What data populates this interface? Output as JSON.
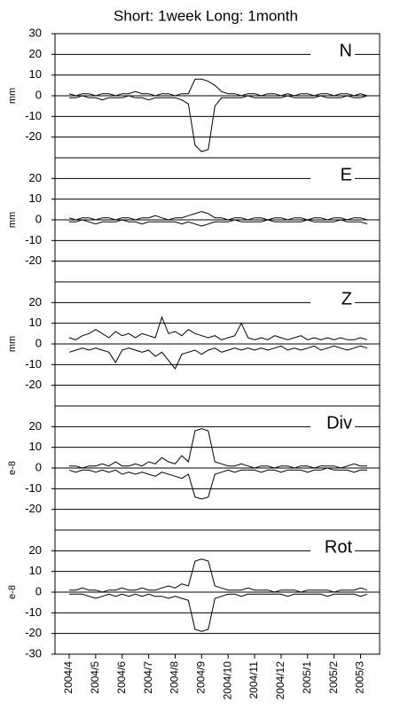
{
  "chart_data": {
    "type": "line",
    "title": "Short: 1week  Long: 1month",
    "categories": [
      "2004/4",
      null,
      null,
      null,
      "2004/5",
      null,
      null,
      null,
      "2004/6",
      null,
      null,
      null,
      "2004/7",
      null,
      null,
      null,
      "2004/8",
      null,
      null,
      null,
      "2004/9",
      null,
      null,
      null,
      "2004/10",
      null,
      null,
      null,
      "2004/11",
      null,
      null,
      null,
      "2004/12",
      null,
      null,
      null,
      "2005/1",
      null,
      null,
      null,
      "2005/2",
      null,
      null,
      null,
      "2005/3",
      null
    ],
    "grid": true,
    "panels": [
      {
        "label": "N",
        "ylabel": "mm",
        "ylim": [
          -30,
          30
        ],
        "yticks": [
          -20,
          -10,
          0,
          10,
          20,
          30
        ],
        "series": [
          {
            "color": "#000000",
            "values": [
              1,
              0,
              1,
              1,
              0,
              1,
              1,
              0,
              1,
              1,
              2,
              1,
              1,
              0,
              1,
              1,
              0,
              1,
              1,
              8,
              8,
              7,
              5,
              2,
              1,
              1,
              0,
              1,
              1,
              0,
              1,
              1,
              0,
              1,
              0,
              1,
              1,
              0,
              1,
              1,
              0,
              1,
              1,
              0,
              1,
              0
            ]
          },
          {
            "color": "#000000",
            "values": [
              -1,
              -1,
              0,
              -1,
              -1,
              -2,
              -1,
              -1,
              -1,
              0,
              -1,
              -1,
              -2,
              -1,
              -1,
              -1,
              -1,
              -2,
              -4,
              -24,
              -27,
              -26,
              -5,
              -1,
              -1,
              -1,
              -1,
              0,
              -1,
              -1,
              -1,
              -1,
              -1,
              0,
              -1,
              -1,
              -1,
              -1,
              0,
              -1,
              -1,
              -1,
              0,
              -1,
              -1,
              0
            ]
          }
        ]
      },
      {
        "label": "E",
        "ylabel": "mm",
        "ylim": [
          -30,
          30
        ],
        "yticks": [
          -20,
          -10,
          0,
          10,
          20
        ],
        "series": [
          {
            "color": "#000000",
            "values": [
              1,
              0,
              1,
              1,
              0,
              1,
              1,
              0,
              1,
              1,
              0,
              1,
              1,
              2,
              1,
              0,
              1,
              1,
              2,
              3,
              4,
              3,
              1,
              1,
              0,
              1,
              1,
              0,
              1,
              1,
              0,
              1,
              1,
              0,
              1,
              1,
              0,
              1,
              1,
              0,
              1,
              1,
              0,
              1,
              1,
              0
            ]
          },
          {
            "color": "#000000",
            "values": [
              -1,
              -1,
              0,
              -1,
              -2,
              -1,
              -1,
              -1,
              0,
              -1,
              -1,
              -2,
              -1,
              -1,
              -1,
              -1,
              -1,
              -2,
              -1,
              -2,
              -3,
              -2,
              -1,
              -1,
              -1,
              0,
              -1,
              -1,
              -1,
              -1,
              0,
              -1,
              -1,
              -1,
              -1,
              -1,
              0,
              -1,
              -1,
              -1,
              -1,
              0,
              -1,
              -1,
              -1,
              -2
            ]
          }
        ]
      },
      {
        "label": "Z",
        "ylabel": "mm",
        "ylim": [
          -30,
          30
        ],
        "yticks": [
          -20,
          -10,
          0,
          10,
          20
        ],
        "series": [
          {
            "color": "#000000",
            "values": [
              3,
              2,
              4,
              5,
              7,
              5,
              3,
              6,
              4,
              5,
              3,
              5,
              4,
              3,
              13,
              5,
              6,
              4,
              7,
              5,
              4,
              3,
              4,
              2,
              3,
              4,
              10,
              3,
              2,
              3,
              2,
              4,
              3,
              2,
              3,
              4,
              2,
              3,
              2,
              3,
              2,
              3,
              2,
              2,
              3,
              2
            ]
          },
          {
            "color": "#000000",
            "values": [
              -4,
              -3,
              -2,
              -3,
              -2,
              -3,
              -4,
              -9,
              -3,
              -2,
              -3,
              -4,
              -3,
              -6,
              -4,
              -8,
              -12,
              -5,
              -4,
              -3,
              -5,
              -3,
              -2,
              -4,
              -3,
              -2,
              -3,
              -2,
              -3,
              -2,
              -3,
              -2,
              -1,
              -3,
              -2,
              -3,
              -2,
              -1,
              -3,
              -2,
              -1,
              -2,
              -3,
              -2,
              -1,
              -2
            ]
          }
        ]
      },
      {
        "label": "Div",
        "ylabel": "e-8",
        "ylim": [
          -30,
          30
        ],
        "yticks": [
          -20,
          -10,
          0,
          10,
          20
        ],
        "series": [
          {
            "color": "#000000",
            "values": [
              1,
              1,
              0,
              1,
              1,
              2,
              1,
              3,
              1,
              1,
              2,
              1,
              3,
              2,
              5,
              3,
              2,
              6,
              3,
              18,
              19,
              18,
              3,
              2,
              1,
              1,
              2,
              1,
              0,
              1,
              1,
              0,
              1,
              1,
              0,
              1,
              1,
              0,
              1,
              1,
              1,
              0,
              1,
              2,
              1,
              1
            ]
          },
          {
            "color": "#000000",
            "values": [
              -1,
              -2,
              -1,
              -1,
              -2,
              -1,
              -2,
              -1,
              -3,
              -2,
              -3,
              -2,
              -3,
              -4,
              -2,
              -3,
              -4,
              -5,
              -3,
              -14,
              -15,
              -14,
              -3,
              -2,
              -1,
              -2,
              -1,
              -1,
              -1,
              -2,
              -1,
              -1,
              -2,
              -1,
              -1,
              -1,
              -2,
              -1,
              -1,
              0,
              -1,
              -1,
              -1,
              -2,
              -1,
              -1
            ]
          }
        ]
      },
      {
        "label": "Rot",
        "ylabel": "e-8",
        "ylim": [
          -30,
          30
        ],
        "yticks": [
          -30,
          -20,
          -10,
          0,
          10,
          20
        ],
        "series": [
          {
            "color": "#000000",
            "values": [
              1,
              1,
              2,
              1,
              1,
              0,
              1,
              1,
              2,
              1,
              1,
              2,
              1,
              1,
              2,
              3,
              2,
              4,
              3,
              15,
              16,
              15,
              3,
              2,
              1,
              1,
              1,
              2,
              1,
              1,
              1,
              0,
              1,
              1,
              1,
              0,
              1,
              1,
              1,
              1,
              0,
              1,
              1,
              1,
              2,
              1
            ]
          },
          {
            "color": "#000000",
            "values": [
              -1,
              -1,
              -1,
              -2,
              -3,
              -2,
              -1,
              -2,
              -1,
              -2,
              -1,
              -2,
              -1,
              -2,
              -2,
              -3,
              -2,
              -3,
              -4,
              -18,
              -19,
              -18,
              -3,
              -2,
              -1,
              -1,
              -2,
              -1,
              -1,
              -1,
              -1,
              -1,
              -1,
              -2,
              -1,
              -1,
              -1,
              -1,
              -1,
              -2,
              -1,
              -1,
              -1,
              -1,
              -2,
              -1
            ]
          }
        ]
      }
    ]
  }
}
